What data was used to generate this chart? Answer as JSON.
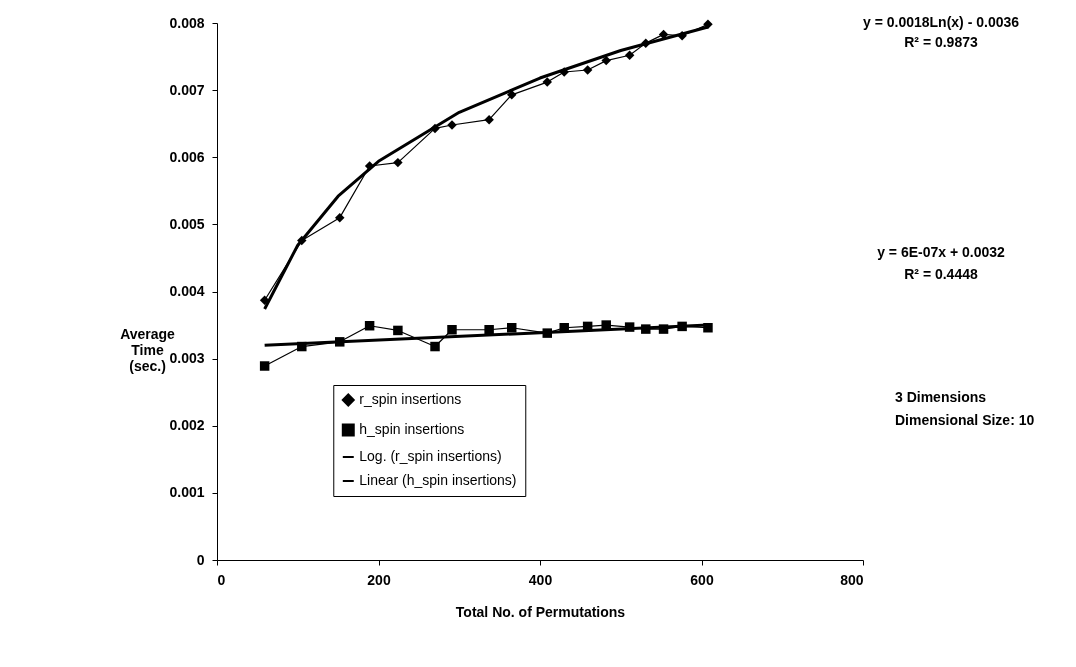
{
  "chart_data": {
    "type": "line",
    "xlabel": "Total No. of Permutations",
    "ylabel": "Average Time (sec.)",
    "xlim": [
      0,
      800
    ],
    "xticks": [
      0,
      200,
      400,
      600,
      800
    ],
    "ylim": [
      0,
      0.008
    ],
    "yticks": [
      0,
      0.001,
      0.002,
      0.003,
      0.004,
      0.005,
      0.006,
      0.007,
      0.008
    ],
    "grid": false,
    "legend": "bottom",
    "line_style": "solid",
    "series": [
      {
        "name": "r_spin insertions",
        "color": "#000000",
        "marker": "diamond",
        "x": [
          59,
          105,
          152,
          189,
          224,
          270,
          291,
          337,
          365,
          409,
          430,
          459,
          482,
          511,
          531,
          553,
          576,
          608
        ],
        "values": [
          0.00387,
          0.00476,
          0.0051,
          0.00587,
          0.00592,
          0.00643,
          0.00648,
          0.00656,
          0.00693,
          0.00712,
          0.00727,
          0.0073,
          0.00744,
          0.00752,
          0.0077,
          0.00783,
          0.00781,
          0.00798
        ]
      },
      {
        "name": "h_spin insertions",
        "color": "#000000",
        "marker": "square",
        "x": [
          59,
          105,
          152,
          189,
          224,
          270,
          291,
          337,
          365,
          409,
          430,
          459,
          482,
          511,
          531,
          553,
          576,
          608
        ],
        "values": [
          0.00289,
          0.00318,
          0.00325,
          0.00349,
          0.00342,
          0.00318,
          0.00343,
          0.00343,
          0.00346,
          0.00338,
          0.00346,
          0.00348,
          0.0035,
          0.00347,
          0.00344,
          0.00344,
          0.00348,
          0.00346
        ]
      },
      {
        "name": "Log. (r_spin insertions)",
        "color": "#000000",
        "x": [
          59,
          100,
          150,
          200,
          300,
          400,
          500,
          608
        ],
        "values": [
          0.00374,
          0.00469,
          0.00542,
          0.00594,
          0.00667,
          0.00718,
          0.00759,
          0.00794
        ]
      },
      {
        "name": "Linear (h_spin insertions)",
        "color": "#000000",
        "x": [
          59,
          608
        ],
        "values": [
          0.0032,
          0.0035
        ]
      }
    ],
    "annotations": [
      "y = 0.0018Ln(x) - 0.0036",
      "R² = 0.9873",
      "y = 6E-07x + 0.0032",
      "R² = 0.4448",
      "3 Dimensions",
      "Dimensional Size: 10"
    ]
  }
}
